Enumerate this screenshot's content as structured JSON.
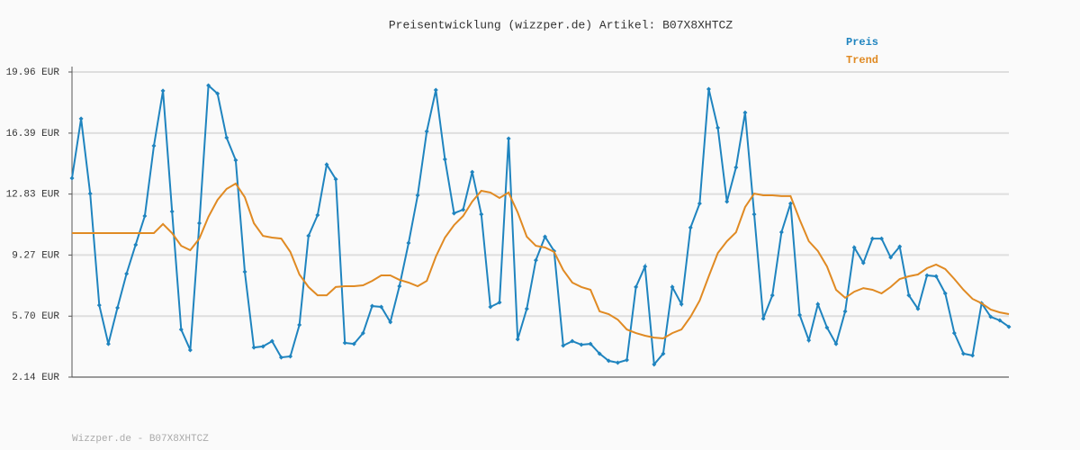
{
  "chart_data": {
    "type": "line",
    "title": "Preisentwicklung (wizzper.de) Artikel: B07X8XHTCZ",
    "footer": "Wizzper.de - B07X8XHTCZ",
    "ylim": [
      2.14,
      19.96
    ],
    "yticks": [
      {
        "value": 2.14,
        "label": "2.14 EUR"
      },
      {
        "value": 5.7,
        "label": "5.70 EUR"
      },
      {
        "value": 9.27,
        "label": "9.27 EUR"
      },
      {
        "value": 12.83,
        "label": "12.83 EUR"
      },
      {
        "value": 16.39,
        "label": "16.39 EUR"
      },
      {
        "value": 19.96,
        "label": "19.96 EUR"
      }
    ],
    "grid": true,
    "series": [
      {
        "name": "Preis",
        "color": "#1f84bf",
        "markers": true,
        "values": [
          13.76,
          17.23,
          12.86,
          6.34,
          4.08,
          6.19,
          8.18,
          9.87,
          11.55,
          15.65,
          18.86,
          11.81,
          4.92,
          3.72,
          11.13,
          19.17,
          18.7,
          16.12,
          14.81,
          8.29,
          3.87,
          3.93,
          4.24,
          3.29,
          3.35,
          5.19,
          10.39,
          11.6,
          14.55,
          13.7,
          4.14,
          4.08,
          4.71,
          6.29,
          6.24,
          5.35,
          7.45,
          9.97,
          12.76,
          16.49,
          18.91,
          14.86,
          11.71,
          11.92,
          14.12,
          11.65,
          6.24,
          6.5,
          16.07,
          4.35,
          6.13,
          8.97,
          10.34,
          9.5,
          3.98,
          4.24,
          4.03,
          4.08,
          3.51,
          3.09,
          2.98,
          3.14,
          7.4,
          8.6,
          2.88,
          3.51,
          7.4,
          6.4,
          10.87,
          12.28,
          18.96,
          16.7,
          12.39,
          14.39,
          17.59,
          11.65,
          5.56,
          6.92,
          10.6,
          12.28,
          5.77,
          4.29,
          6.4,
          5.03,
          4.08,
          5.98,
          9.71,
          8.81,
          10.23,
          10.23,
          9.13,
          9.76,
          6.92,
          6.13,
          8.08,
          8.03,
          7.03,
          4.71,
          3.51,
          3.4,
          6.45,
          5.66,
          5.45,
          5.08
        ]
      },
      {
        "name": "Trend",
        "color": "#e08a23",
        "markers": false,
        "values": [
          10.55,
          10.55,
          10.55,
          10.55,
          10.55,
          10.55,
          10.55,
          10.55,
          10.55,
          10.55,
          11.08,
          10.55,
          9.81,
          9.55,
          10.23,
          11.5,
          12.49,
          13.13,
          13.44,
          12.65,
          11.13,
          10.39,
          10.29,
          10.23,
          9.45,
          8.13,
          7.4,
          6.92,
          6.92,
          7.4,
          7.45,
          7.45,
          7.5,
          7.76,
          8.08,
          8.08,
          7.82,
          7.66,
          7.45,
          7.76,
          9.18,
          10.29,
          11.02,
          11.55,
          12.39,
          13.02,
          12.92,
          12.6,
          12.92,
          11.76,
          10.34,
          9.81,
          9.71,
          9.45,
          8.39,
          7.66,
          7.4,
          7.24,
          5.98,
          5.82,
          5.5,
          4.92,
          4.71,
          4.56,
          4.45,
          4.4,
          4.71,
          4.92,
          5.66,
          6.61,
          8.03,
          9.39,
          10.08,
          10.6,
          12.07,
          12.86,
          12.76,
          12.76,
          12.71,
          12.71,
          11.34,
          10.08,
          9.5,
          8.6,
          7.24,
          6.77,
          7.13,
          7.34,
          7.24,
          7.03,
          7.4,
          7.87,
          8.03,
          8.13,
          8.5,
          8.71,
          8.45,
          7.87,
          7.24,
          6.71,
          6.45,
          6.08,
          5.92,
          5.82
        ]
      }
    ]
  }
}
